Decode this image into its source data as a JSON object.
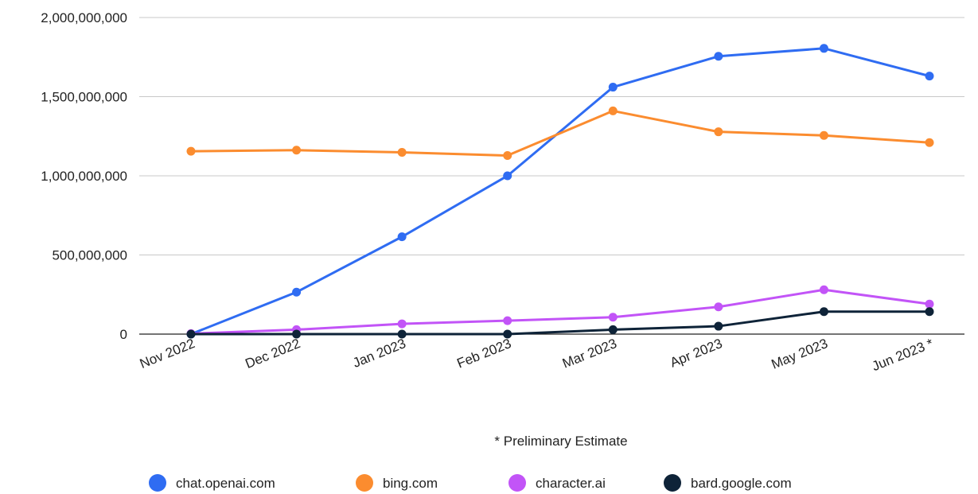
{
  "chart_data": {
    "type": "line",
    "title": "",
    "xlabel": "",
    "ylabel": "",
    "categories": [
      "Nov 2022",
      "Dec 2022",
      "Jan 2023",
      "Feb 2023",
      "Mar 2023",
      "Apr 2023",
      "May 2023",
      "Jun 2023 *"
    ],
    "ylim": [
      0,
      2000000000
    ],
    "y_ticks": [
      0,
      500000000,
      1000000000,
      1500000000,
      2000000000
    ],
    "y_tick_labels": [
      "0",
      "500,000,000",
      "1,000,000,000",
      "1,500,000,000",
      "2,000,000,000"
    ],
    "grid": true,
    "legend_position": "bottom",
    "note": "* Preliminary Estimate",
    "series": [
      {
        "name": "chat.openai.com",
        "color": "#2f6cf2",
        "values": [
          0,
          265000000,
          615000000,
          1000000000,
          1560000000,
          1755000000,
          1805000000,
          1630000000
        ]
      },
      {
        "name": "bing.com",
        "color": "#fb8c2f",
        "values": [
          1155000000,
          1162000000,
          1148000000,
          1128000000,
          1410000000,
          1278000000,
          1255000000,
          1210000000
        ]
      },
      {
        "name": "character.ai",
        "color": "#c254f7",
        "values": [
          3000000,
          28000000,
          65000000,
          85000000,
          107000000,
          172000000,
          280000000,
          190000000
        ]
      },
      {
        "name": "bard.google.com",
        "color": "#0e2338",
        "values": [
          0,
          0,
          0,
          0,
          28000000,
          50000000,
          142000000,
          142000000
        ]
      }
    ]
  }
}
